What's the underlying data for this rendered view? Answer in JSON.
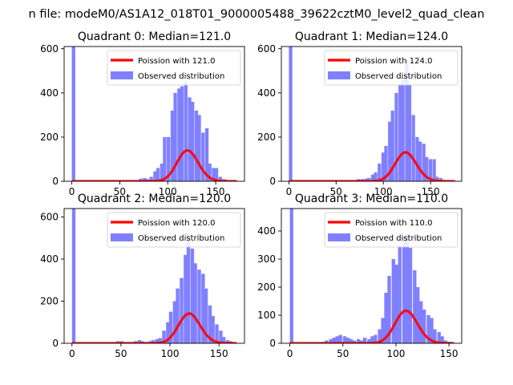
{
  "suptitle": "n file: modeM0/AS1A12_018T01_9000005488_39622cztM0_level2_quad_clean",
  "colors": {
    "histogram": "#8080ff",
    "poisson": "#ff0000"
  },
  "legend_observed": "Observed distribution",
  "chart_data": [
    {
      "type": "bar",
      "title": "Quadrant 0: Median=121.0",
      "xlim": [
        -8,
        180
      ],
      "ylim": [
        0,
        610
      ],
      "xticks": [
        0,
        50,
        100,
        150
      ],
      "yticks": [
        0,
        200,
        400,
        600
      ],
      "legend": "top-right",
      "poisson_label": "Poission with 121.0",
      "poisson_mean": 121.0,
      "poisson_scale": 3850,
      "series": [
        {
          "name": "Observed distribution",
          "type": "bar",
          "bin_width": 3.6,
          "bins": [
            0,
            63,
            67,
            70,
            74,
            77,
            81,
            85,
            88,
            92,
            95,
            99,
            103,
            106,
            110,
            113,
            117,
            121,
            124,
            128,
            131,
            135,
            139,
            142,
            146,
            149,
            153,
            157,
            160,
            164,
            167,
            171
          ],
          "values": [
            640,
            0,
            5,
            12,
            15,
            10,
            20,
            45,
            60,
            80,
            200,
            200,
            320,
            400,
            420,
            430,
            450,
            380,
            360,
            320,
            300,
            220,
            240,
            80,
            60,
            60,
            20,
            10,
            5,
            5,
            2,
            0
          ]
        },
        {
          "name": "Poission with 121.0",
          "type": "line",
          "x_range": [
            0,
            172
          ]
        }
      ]
    },
    {
      "type": "bar",
      "title": "Quadrant 1: Median=124.0",
      "xlim": [
        -8,
        183
      ],
      "ylim": [
        0,
        610
      ],
      "xticks": [
        0,
        50,
        100,
        150
      ],
      "yticks": [
        0,
        200,
        400,
        600
      ],
      "legend": "top-right",
      "poisson_label": "Poission with 124.0",
      "poisson_mean": 124.0,
      "poisson_scale": 3650,
      "series": [
        {
          "name": "Observed distribution",
          "type": "bar",
          "bin_width": 3.6,
          "bins": [
            0,
            65,
            69,
            72,
            76,
            80,
            83,
            87,
            90,
            94,
            98,
            101,
            105,
            108,
            112,
            116,
            119,
            123,
            126,
            130,
            134,
            137,
            141,
            144,
            148,
            152,
            155,
            159,
            162,
            166,
            170,
            173
          ],
          "values": [
            640,
            3,
            5,
            10,
            10,
            12,
            15,
            30,
            40,
            80,
            130,
            160,
            270,
            320,
            400,
            440,
            470,
            550,
            440,
            300,
            200,
            180,
            170,
            110,
            100,
            100,
            20,
            15,
            5,
            3,
            2,
            0
          ]
        },
        {
          "name": "Poission with 124.0",
          "type": "line",
          "x_range": [
            0,
            176
          ]
        }
      ]
    },
    {
      "type": "bar",
      "title": "Quadrant 2: Median=120.0",
      "xlim": [
        -8,
        176
      ],
      "ylim": [
        0,
        640
      ],
      "xticks": [
        0,
        50,
        100,
        150
      ],
      "yticks": [
        0,
        200,
        400,
        600
      ],
      "legend": "top-right",
      "poisson_label": "Poission with 120.0",
      "poisson_mean": 120.0,
      "poisson_scale": 3880,
      "series": [
        {
          "name": "Observed distribution",
          "type": "bar",
          "bin_width": 3.6,
          "bins": [
            0,
            45,
            49,
            52,
            56,
            60,
            63,
            67,
            70,
            74,
            78,
            81,
            85,
            88,
            92,
            96,
            99,
            103,
            106,
            110,
            114,
            117,
            121,
            124,
            128,
            132,
            135,
            139,
            142,
            146,
            150,
            153,
            157,
            160,
            164
          ],
          "values": [
            640,
            10,
            10,
            5,
            5,
            5,
            10,
            15,
            10,
            5,
            10,
            15,
            20,
            25,
            60,
            100,
            150,
            200,
            260,
            310,
            420,
            520,
            450,
            380,
            350,
            330,
            260,
            180,
            130,
            90,
            60,
            30,
            15,
            10,
            5
          ]
        },
        {
          "name": "Poission with 120.0",
          "type": "line",
          "x_range": [
            0,
            168
          ]
        }
      ]
    },
    {
      "type": "bar",
      "title": "Quadrant 3: Median=110.0",
      "xlim": [
        -8,
        162
      ],
      "ylim": [
        0,
        480
      ],
      "xticks": [
        0,
        50,
        100,
        150
      ],
      "yticks": [
        0,
        100,
        200,
        300,
        400
      ],
      "legend": "top-right",
      "poisson_label": "Poission with 110.0",
      "poisson_mean": 110.0,
      "poisson_scale": 3050,
      "series": [
        {
          "name": "Observed distribution",
          "type": "bar",
          "bin_width": 3.3,
          "bins": [
            0,
            30,
            33,
            37,
            40,
            43,
            46,
            50,
            53,
            56,
            59,
            63,
            66,
            69,
            73,
            76,
            79,
            83,
            86,
            89,
            92,
            96,
            99,
            102,
            106,
            109,
            112,
            116,
            119,
            122,
            125,
            129,
            132,
            135,
            139,
            142,
            145,
            149
          ],
          "values": [
            480,
            5,
            10,
            15,
            20,
            25,
            30,
            25,
            20,
            15,
            10,
            15,
            10,
            20,
            15,
            25,
            30,
            50,
            90,
            180,
            240,
            300,
            280,
            350,
            380,
            390,
            340,
            260,
            200,
            150,
            120,
            100,
            90,
            50,
            40,
            25,
            10,
            5
          ]
        },
        {
          "name": "Poission with 110.0",
          "type": "line",
          "x_range": [
            0,
            155
          ]
        }
      ]
    }
  ]
}
